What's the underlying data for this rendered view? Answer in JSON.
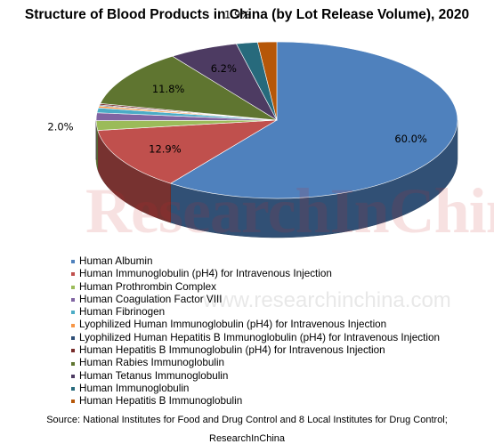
{
  "chart_data": {
    "type": "pie",
    "title": "Structure of Blood Products in China (by Lot Release Volume), 2020",
    "legend_position": "bottom-left",
    "start_angle_deg": 90,
    "slices": [
      {
        "name": "Human Albumin",
        "value": 60.0,
        "label": "60.0%",
        "color": "#4F81BD"
      },
      {
        "name": "Human Immunoglobulin (pH4) for Intravenous Injection",
        "value": 12.9,
        "label": "12.9%",
        "color": "#C0504D"
      },
      {
        "name": "Human Prothrombin Complex",
        "value": 2.0,
        "label": "2.0%",
        "color": "#9BBB59"
      },
      {
        "name": "Human Coagulation Factor VIII",
        "value": 1.6,
        "label": "",
        "color": "#8064A2"
      },
      {
        "name": "Human Fibrinogen",
        "value": 1.0,
        "label": "",
        "color": "#4BACC6"
      },
      {
        "name": "Lyophilized Human Immunoglobulin (pH4) for Intravenous Injection",
        "value": 0.4,
        "label": "",
        "color": "#F79646"
      },
      {
        "name": "Lyophilized Human Hepatitis B Immunoglobulin (pH4) for Intravenous Injection",
        "value": 0.2,
        "label": "",
        "color": "#2C4D75"
      },
      {
        "name": "Human Hepatitis B Immunoglobulin (pH4) for Intravenous Injection",
        "value": 0.3,
        "label": "",
        "color": "#772C2A"
      },
      {
        "name": "Human Rabies Immunoglobulin",
        "value": 11.8,
        "label": "11.8%",
        "color": "#5F7530"
      },
      {
        "name": "Human Tetanus Immunoglobulin",
        "value": 6.2,
        "label": "6.2%",
        "color": "#4D3B62"
      },
      {
        "name": "Human Immunoglobulin",
        "value": 1.9,
        "label": "1.9%",
        "color": "#276A7C"
      },
      {
        "name": "Human Hepatitis B Immunoglobulin",
        "value": 1.7,
        "label": "",
        "color": "#B65708"
      }
    ]
  },
  "watermark": {
    "main": "ResearchInChina",
    "url": "www.researchinchina.com"
  },
  "source": {
    "line1": "Source: National Institutes for Food and Drug Control and 8 Local Institutes for Drug Control;",
    "line2": "ResearchInChina"
  }
}
